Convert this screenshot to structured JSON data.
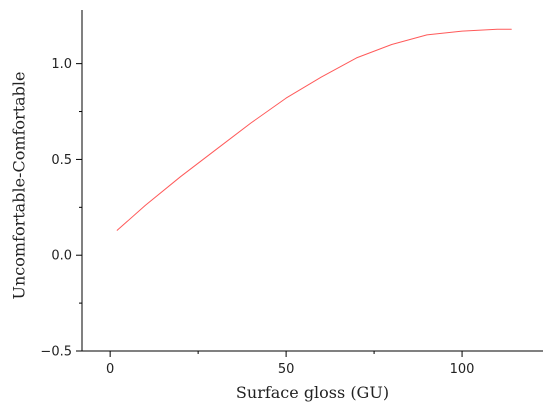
{
  "chart_data": {
    "type": "line",
    "title": "",
    "xlabel": "Surface gloss (GU)",
    "ylabel": "Uncomfortable-Comfortable",
    "xlim": [
      -8,
      123
    ],
    "ylim": [
      -0.5,
      1.28
    ],
    "x_ticks": [
      0,
      50,
      100
    ],
    "y_ticks": [
      -0.5,
      0.0,
      0.5,
      1.0
    ],
    "x_tick_labels": [
      "0",
      "50",
      "100"
    ],
    "y_tick_labels": [
      "−0.5",
      "0.0",
      "0.5",
      "1.0"
    ],
    "grid": false,
    "legend": "none",
    "series": [
      {
        "color": "#ff5a5a",
        "x": [
          2,
          10,
          20,
          30,
          40,
          50,
          60,
          70,
          80,
          90,
          100,
          110,
          114
        ],
        "y": [
          0.13,
          0.26,
          0.41,
          0.55,
          0.69,
          0.82,
          0.93,
          1.03,
          1.1,
          1.15,
          1.17,
          1.18,
          1.18
        ]
      }
    ]
  }
}
